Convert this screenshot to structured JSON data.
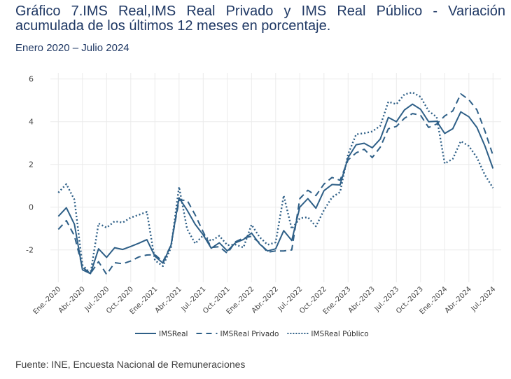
{
  "header": {
    "title": "Gráfico 7.IMS Real,IMS Real Privado y IMS Real Público - Variación acumulada de los últimos 12 meses en porcentaje.",
    "subtitle": "Enero 2020 – Julio 2024"
  },
  "footer": {
    "source": "Fuente: INE, Encuesta Nacional de Remuneraciones"
  },
  "colors": {
    "line": "#2e5f87",
    "title": "#1f3864",
    "grid": "#ebebeb"
  },
  "chart_data": {
    "type": "line",
    "title": "Gráfico 7.IMS Real,IMS Real Privado y IMS Real Público - Variación acumulada de los últimos 12 meses en porcentaje.",
    "subtitle": "Enero 2020 – Julio 2024",
    "xlabel": "",
    "ylabel": "",
    "ylim": [
      -3.5,
      6.2
    ],
    "yticks": [
      -2,
      0,
      2,
      4,
      6
    ],
    "grid": true,
    "legend_position": "bottom",
    "x": [
      "2020-01",
      "2020-02",
      "2020-03",
      "2020-04",
      "2020-05",
      "2020-06",
      "2020-07",
      "2020-08",
      "2020-09",
      "2020-10",
      "2020-11",
      "2020-12",
      "2021-01",
      "2021-02",
      "2021-03",
      "2021-04",
      "2021-05",
      "2021-06",
      "2021-07",
      "2021-08",
      "2021-09",
      "2021-10",
      "2021-11",
      "2021-12",
      "2022-01",
      "2022-02",
      "2022-03",
      "2022-04",
      "2022-05",
      "2022-06",
      "2022-07",
      "2022-08",
      "2022-09",
      "2022-10",
      "2022-11",
      "2022-12",
      "2023-01",
      "2023-02",
      "2023-03",
      "2023-04",
      "2023-05",
      "2023-06",
      "2023-07",
      "2023-08",
      "2023-09",
      "2023-10",
      "2023-11",
      "2023-12",
      "2024-01",
      "2024-02",
      "2024-03",
      "2024-04",
      "2024-05",
      "2024-06",
      "2024-07"
    ],
    "xtick_labels": [
      "Ene.-2020",
      "Abr.-2020",
      "Jul.-2020",
      "Oct.-2020",
      "Ene.-2021",
      "Abr.-2021",
      "Jul.-2021",
      "Oct.-2021",
      "Ene.-2022",
      "Abr.-2022",
      "Jul.-2022",
      "Oct.-2022",
      "Ene.-2023",
      "Abr.-2023",
      "Jul.-2023",
      "Oct.-2023",
      "Ene.-2024",
      "Abr.-2024",
      "Jul.-2024"
    ],
    "xtick_every_months": 3,
    "series": [
      {
        "name": "IMSReal",
        "style": "solid",
        "values": [
          -0.43,
          -0.03,
          -0.8,
          -2.93,
          -3.11,
          -1.95,
          -2.35,
          -1.9,
          -1.98,
          -1.84,
          -1.69,
          -1.52,
          -2.3,
          -2.62,
          -1.78,
          0.44,
          -0.14,
          -0.8,
          -1.3,
          -1.92,
          -1.67,
          -2.05,
          -1.67,
          -1.51,
          -1.21,
          -1.72,
          -2.05,
          -1.95,
          -1.1,
          -1.56,
          0.0,
          0.4,
          -0.05,
          0.77,
          1.06,
          1.04,
          2.32,
          2.92,
          2.99,
          2.78,
          3.19,
          4.2,
          4.0,
          4.55,
          4.82,
          4.58,
          4.0,
          4.02,
          3.45,
          3.67,
          4.46,
          4.23,
          3.73,
          2.86,
          1.81
        ]
      },
      {
        "name": "IMSReal Privado",
        "style": "dashed",
        "values": [
          -1.04,
          -0.63,
          -1.34,
          -2.82,
          -3.1,
          -2.55,
          -3.15,
          -2.6,
          -2.65,
          -2.52,
          -2.33,
          -2.24,
          -2.22,
          -2.55,
          -1.78,
          0.32,
          0.32,
          -0.36,
          -1.16,
          -1.89,
          -1.85,
          -2.16,
          -1.62,
          -1.45,
          -1.36,
          -1.67,
          -2.11,
          -2.05,
          -2.05,
          -2.0,
          0.4,
          0.79,
          0.54,
          1.08,
          1.39,
          1.26,
          2.21,
          2.54,
          2.71,
          2.32,
          2.81,
          3.67,
          3.78,
          4.16,
          4.38,
          4.3,
          3.73,
          3.89,
          4.27,
          4.5,
          5.3,
          5.03,
          4.55,
          3.56,
          2.42
        ]
      },
      {
        "name": "IMSReal Público",
        "style": "dotted",
        "values": [
          0.68,
          1.08,
          0.35,
          -2.7,
          -3.1,
          -0.76,
          -0.96,
          -0.66,
          -0.72,
          -0.49,
          -0.36,
          -0.22,
          -2.49,
          -2.76,
          -1.89,
          0.95,
          -1.02,
          -1.7,
          -1.32,
          -1.58,
          -1.34,
          -1.78,
          -1.75,
          -1.89,
          -0.82,
          -1.4,
          -1.76,
          -1.65,
          0.54,
          -1.02,
          -0.52,
          -0.47,
          -0.9,
          -0.14,
          0.46,
          0.7,
          2.48,
          3.41,
          3.46,
          3.54,
          3.81,
          4.93,
          4.82,
          5.28,
          5.37,
          5.16,
          4.5,
          4.22,
          2.04,
          2.26,
          3.09,
          2.86,
          2.32,
          1.5,
          0.9
        ]
      }
    ]
  }
}
